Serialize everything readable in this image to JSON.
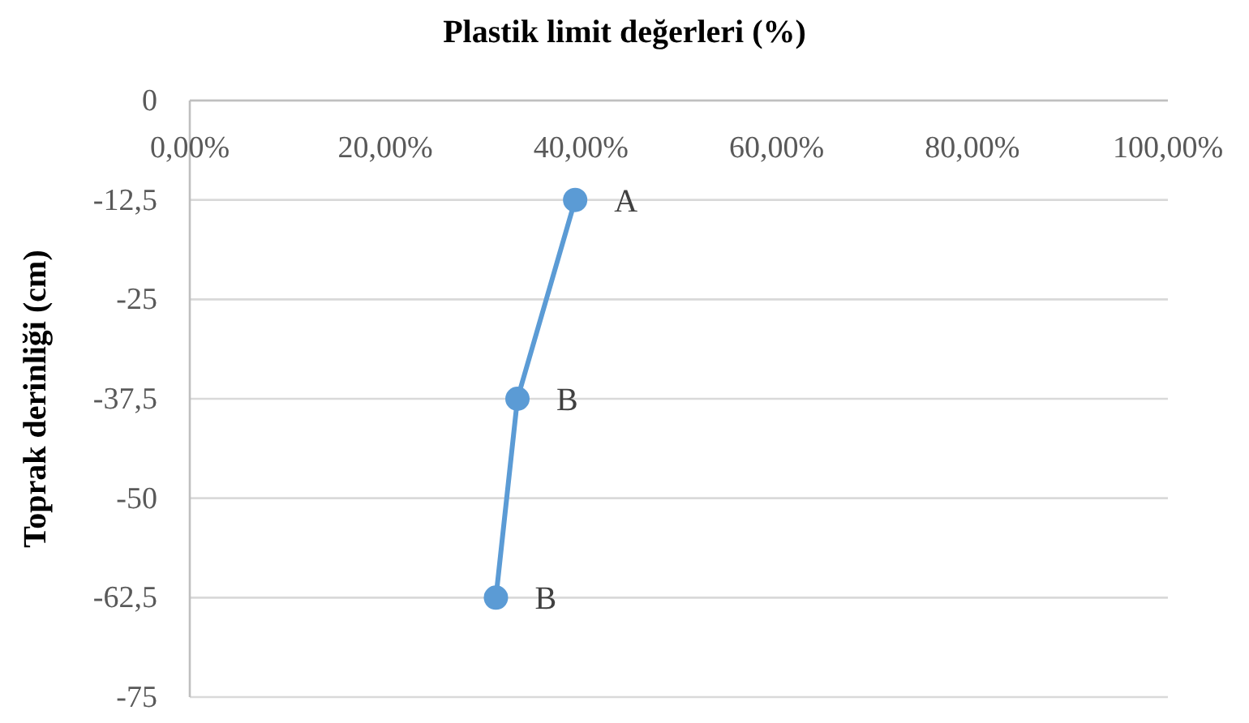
{
  "chart_data": {
    "type": "line",
    "title": "Plastik limit değerleri (%)",
    "ylabel": "Toprak derinliği (cm)",
    "x": [
      39.4,
      33.5,
      31.3
    ],
    "series": [
      {
        "color": "#5b9bd5",
        "values": [
          -12.5,
          -37.5,
          -62.5
        ]
      }
    ],
    "xlim": [
      0,
      100
    ],
    "xticks": [
      {
        "value": 0,
        "label": "0,00%"
      },
      {
        "value": 20,
        "label": "20,00%"
      },
      {
        "value": 40,
        "label": "40,00%"
      },
      {
        "value": 60,
        "label": "60,00%"
      },
      {
        "value": 80,
        "label": "80,00%"
      },
      {
        "value": 100,
        "label": "100,00%"
      }
    ],
    "ylim": [
      -75,
      0
    ],
    "yticks": [
      0,
      {
        "value": -12.5,
        "label": "-12,5"
      },
      -25,
      {
        "value": -37.5,
        "label": "-37,5"
      },
      -50,
      {
        "value": -62.5,
        "label": "-62,5"
      },
      -75
    ],
    "grid": "y",
    "marker": "circle",
    "line_style": "solid",
    "annotations": [
      {
        "text": "A",
        "x": 39.4,
        "y": -12.5
      },
      {
        "text": "B",
        "x": 33.5,
        "y": -37.5
      },
      {
        "text": "B",
        "x": 31.3,
        "y": -62.5
      }
    ]
  }
}
